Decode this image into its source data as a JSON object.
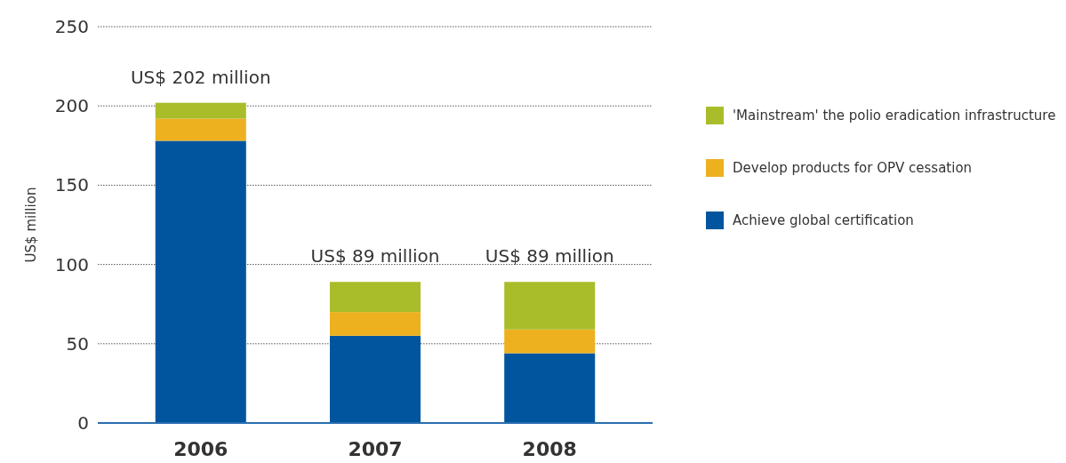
{
  "chart_data": {
    "type": "bar",
    "ylabel": "US$ million",
    "categories": [
      "2006",
      "2007",
      "2008"
    ],
    "stacked": true,
    "series": [
      {
        "name": "Achieve global certification",
        "color": "#00559e",
        "values": [
          178,
          55,
          44
        ]
      },
      {
        "name": "Develop products for OPV cessation",
        "color": "#edb120",
        "values": [
          14,
          15,
          15
        ]
      },
      {
        "name": "'Mainstream' the polio eradication infrastructure",
        "color": "#a9bd2a",
        "values": [
          10,
          19,
          30
        ]
      }
    ],
    "totals": [
      "US$ 202 million",
      "US$ 89 million",
      "US$ 89 million"
    ],
    "ylim": [
      0,
      250
    ],
    "yticks": [
      0,
      50,
      100,
      150,
      200,
      250
    ],
    "grid": "y",
    "legend": "right"
  }
}
